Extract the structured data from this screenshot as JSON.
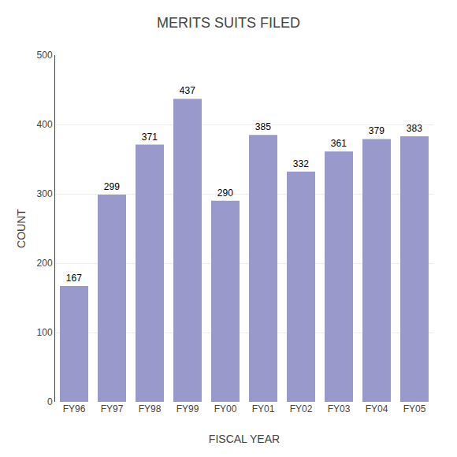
{
  "chart_data": {
    "type": "bar",
    "title": "MERITS SUITS FILED",
    "categories": [
      "FY96",
      "FY97",
      "FY98",
      "FY99",
      "FY00",
      "FY01",
      "FY02",
      "FY03",
      "FY04",
      "FY05"
    ],
    "values": [
      167,
      299,
      371,
      437,
      290,
      385,
      332,
      361,
      379,
      383
    ],
    "color": "#9999cc",
    "xlabel": "FISCAL YEAR",
    "ylabel": "COUNT",
    "ylim": [
      0,
      500
    ],
    "yticks": [
      0,
      100,
      200,
      300,
      400,
      500
    ],
    "grid": true,
    "data_labels": true
  }
}
